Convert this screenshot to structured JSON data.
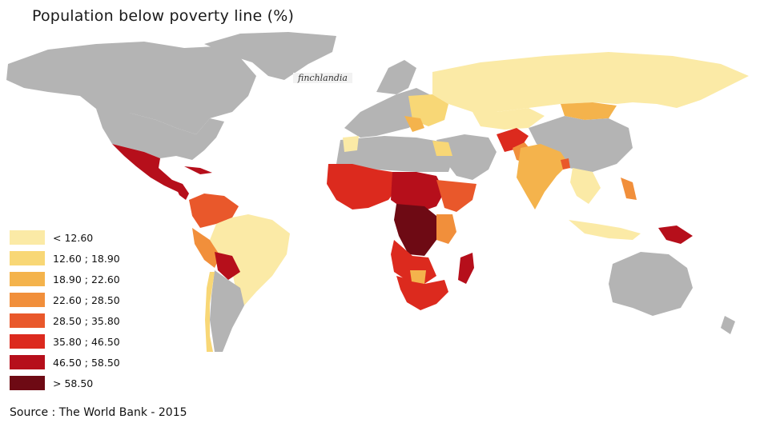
{
  "title": "Population below poverty line (%)",
  "watermark": "finchlandia",
  "source": "Source : The World Bank - 2015",
  "colors": {
    "no_data": "#b4b4b4",
    "water": "#ffffff"
  },
  "legend": [
    {
      "label": "< 12.60",
      "color": "#fbeaa6"
    },
    {
      "label": "12.60 ; 18.90",
      "color": "#f8d776"
    },
    {
      "label": "18.90 ; 22.60",
      "color": "#f4b34c"
    },
    {
      "label": "22.60 ; 28.50",
      "color": "#f18f3b"
    },
    {
      "label": "28.50 ; 35.80",
      "color": "#e9582b"
    },
    {
      "label": "35.80 ; 46.50",
      "color": "#dc2a1e"
    },
    {
      "label": "46.50 ; 58.50",
      "color": "#b60f1b"
    },
    {
      "label": "> 58.50",
      "color": "#6e0a14"
    }
  ]
}
